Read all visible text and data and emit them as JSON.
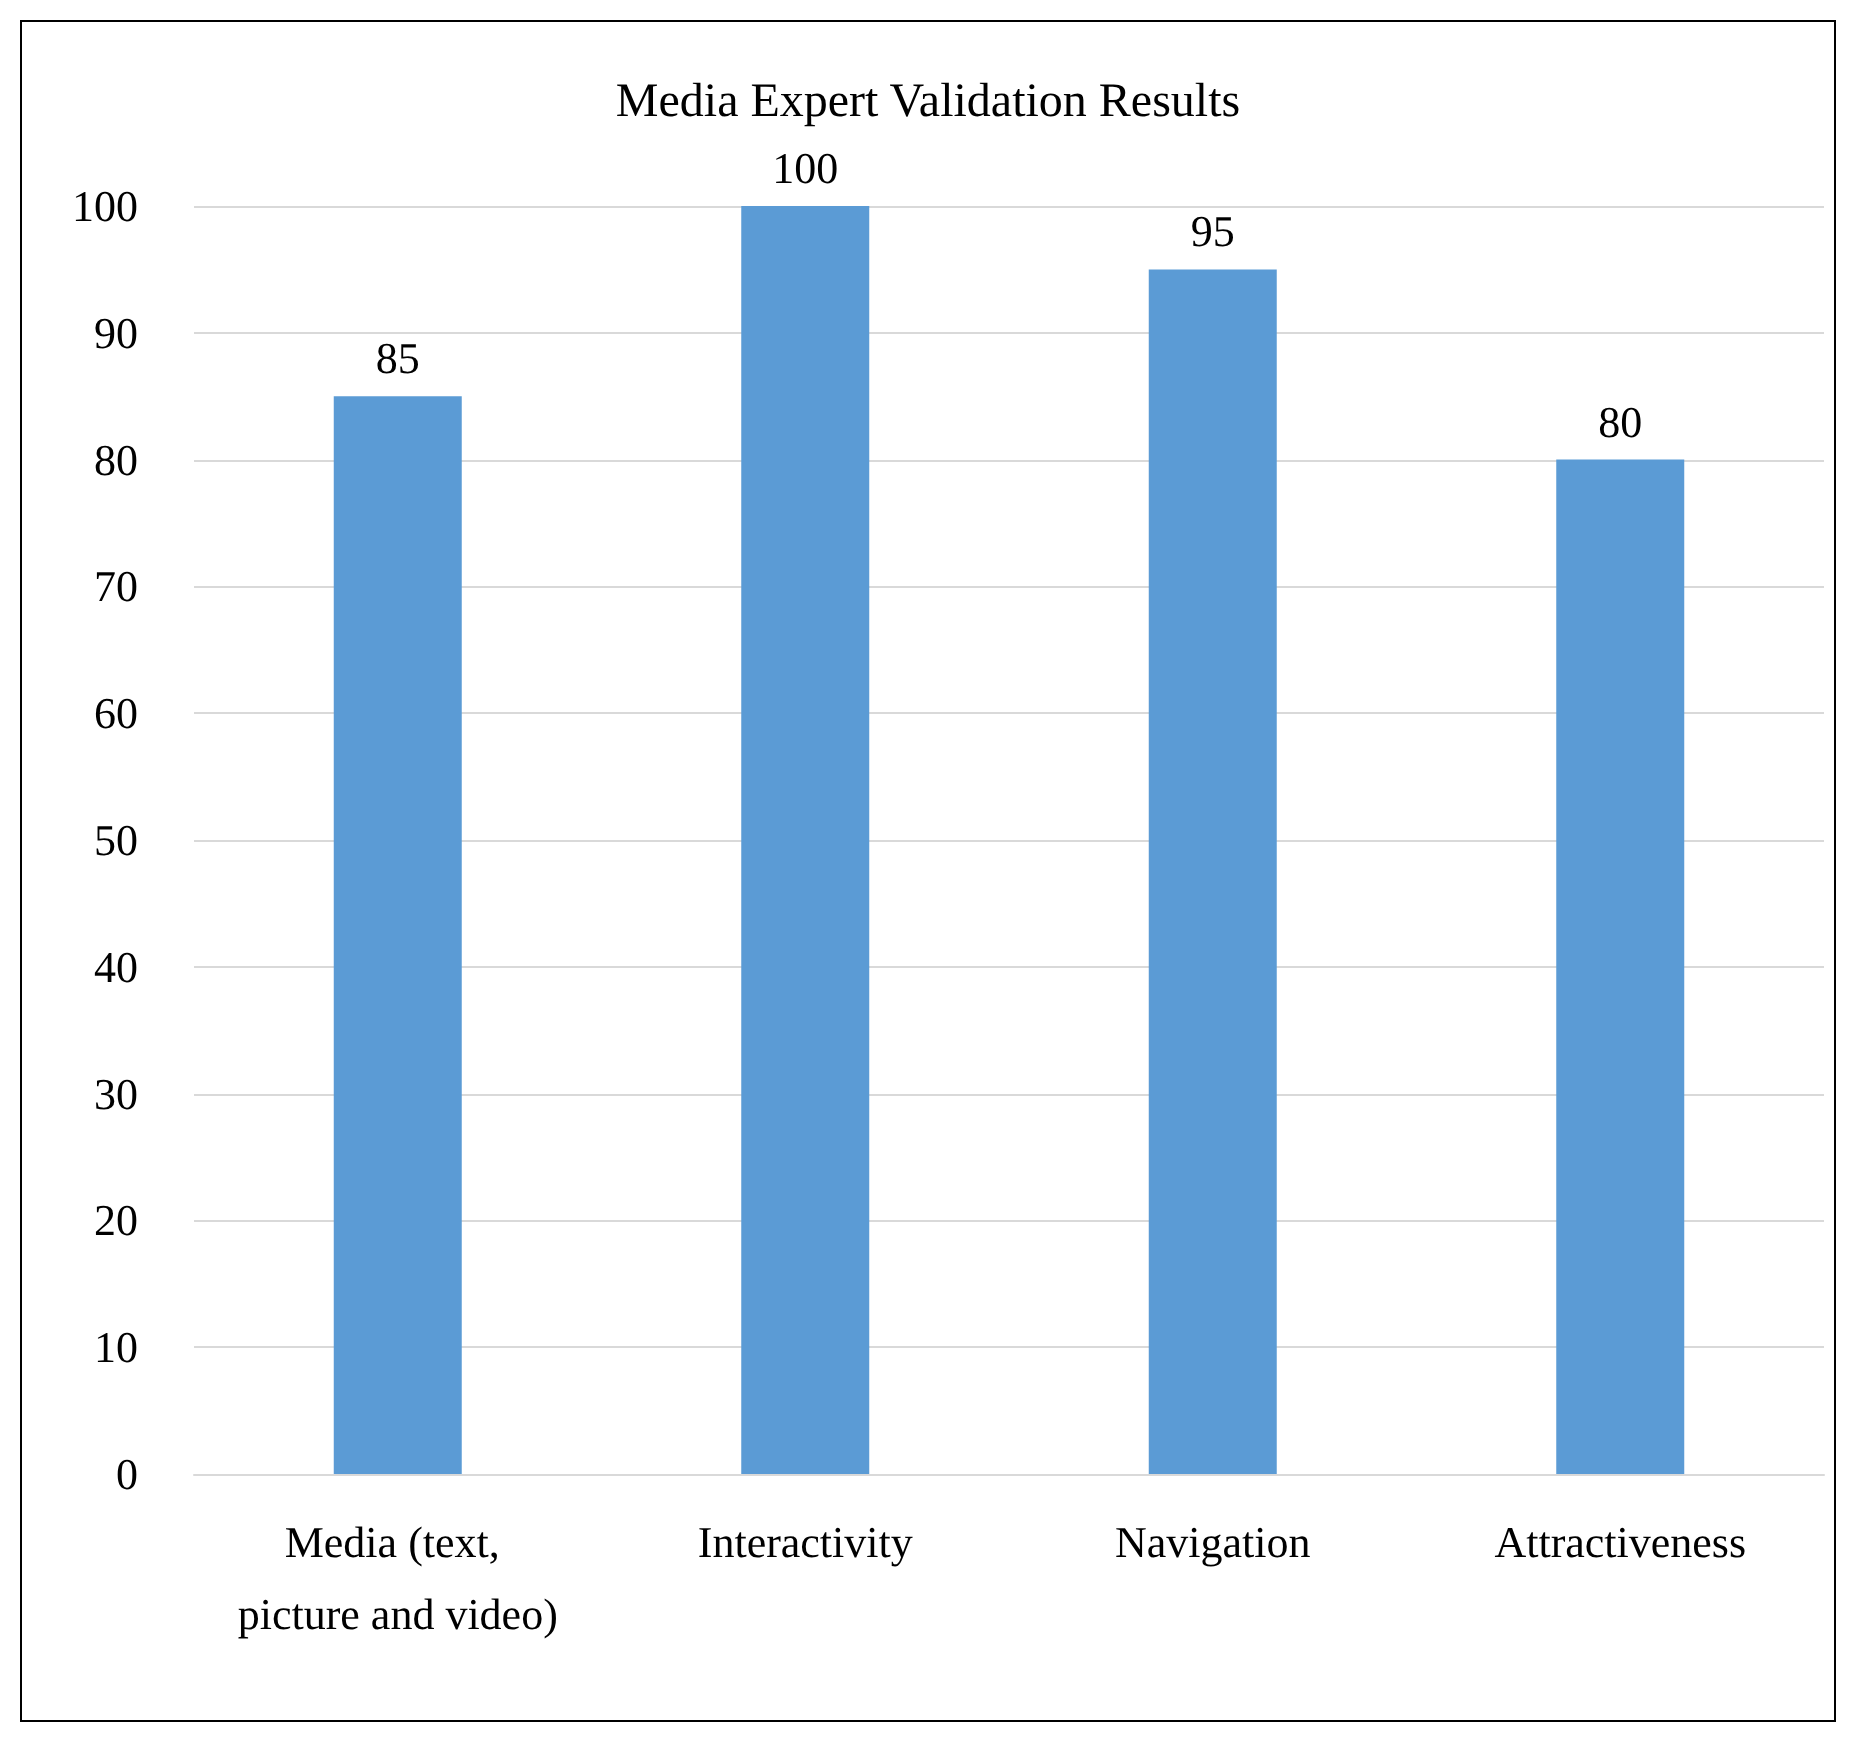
{
  "chart_data": {
    "type": "bar",
    "title": "Media Expert Validation Results",
    "categories": [
      "Media (text, picture and video)",
      "Interactivity",
      "Navigation",
      "Attractiveness"
    ],
    "values": [
      85,
      100,
      95,
      80
    ],
    "color": "#5b9bd5",
    "ylim": [
      0,
      100
    ],
    "yticks": [
      0,
      10,
      20,
      30,
      40,
      50,
      60,
      70,
      80,
      90,
      100
    ],
    "grid": "y",
    "data_labels": true
  }
}
